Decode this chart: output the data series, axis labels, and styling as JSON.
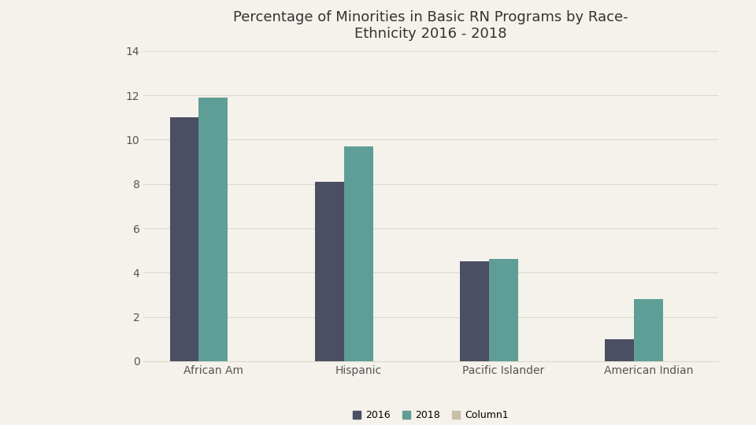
{
  "title": "Percentage of Minorities in Basic RN Programs by Race-\nEthnicity 2016 - 2018",
  "categories": [
    "African Am",
    "Hispanic",
    "Pacific Islander",
    "American Indian"
  ],
  "series": {
    "2016": [
      11.0,
      8.1,
      4.5,
      1.0
    ],
    "2018": [
      11.9,
      9.7,
      4.6,
      2.8
    ],
    "Column1": [
      0,
      0,
      0,
      0
    ]
  },
  "colors": {
    "2016": "#4a4f63",
    "2018": "#5f9e96",
    "Column1": "#c8bfa8"
  },
  "ylim": [
    0,
    14
  ],
  "yticks": [
    0,
    2,
    4,
    6,
    8,
    10,
    12,
    14
  ],
  "legend_labels": [
    "2016",
    "2018",
    "Column1"
  ],
  "background_color": "#f5f2eb",
  "grid_color": "#ddd9ce",
  "bar_width": 0.2,
  "title_fontsize": 13,
  "tick_fontsize": 10,
  "legend_fontsize": 9
}
